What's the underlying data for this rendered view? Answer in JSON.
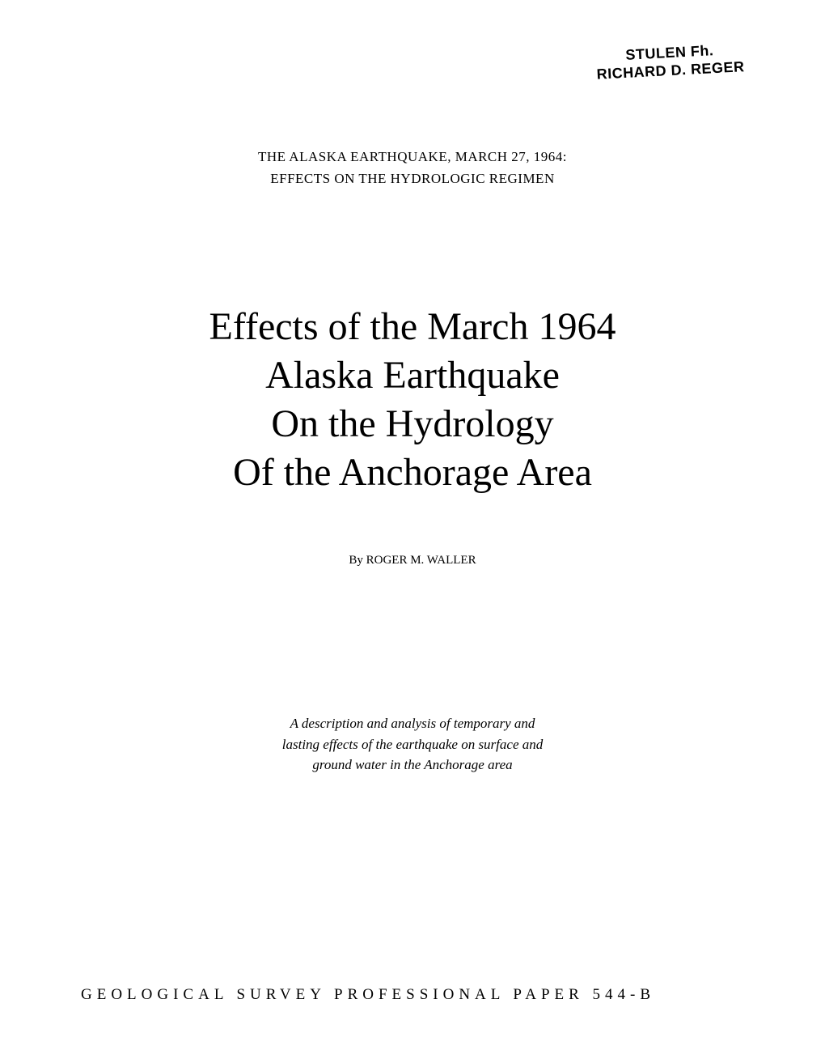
{
  "stamp": {
    "line1": "STULEN Fh.",
    "line2": "RICHARD D. REGER"
  },
  "header": {
    "line1": "THE ALASKA EARTHQUAKE, MARCH 27, 1964:",
    "line2": "EFFECTS ON THE HYDROLOGIC REGIMEN"
  },
  "title": {
    "line1": "Effects of the March 1964",
    "line2": "Alaska Earthquake",
    "line3": "On the Hydrology",
    "line4": "Of the Anchorage Area"
  },
  "byline": "By ROGER M. WALLER",
  "description": {
    "line1": "A description and analysis of temporary and",
    "line2": "lasting effects of the earthquake on surface and",
    "line3": "ground water in the Anchorage area"
  },
  "footer": "GEOLOGICAL SURVEY PROFESSIONAL PAPER 544-B",
  "colors": {
    "background": "#ffffff",
    "text": "#000000"
  },
  "typography": {
    "body_font": "Georgia, Times New Roman, serif",
    "stamp_font": "Arial, sans-serif",
    "title_fontsize": 48,
    "header_fontsize": 17,
    "byline_fontsize": 15,
    "description_fontsize": 17,
    "footer_fontsize": 19,
    "footer_letter_spacing": 6
  }
}
